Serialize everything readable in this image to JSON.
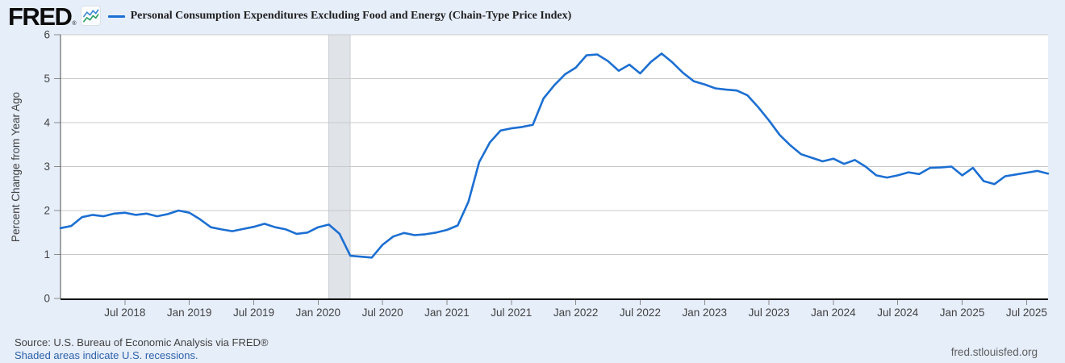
{
  "logo": {
    "text": "FRED",
    "registered": "®",
    "icon": "fred-sparkline-icon"
  },
  "legend": {
    "series_label": "Personal Consumption Expenditures Excluding Food and Energy (Chain-Type Price Index)",
    "swatch_color": "#1c6fd2"
  },
  "chart_data": {
    "type": "line",
    "title": "Personal Consumption Expenditures Excluding Food and Energy (Chain-Type Price Index)",
    "xlabel": "",
    "ylabel": "Percent Change from Year Ago",
    "ylim": [
      0,
      6
    ],
    "yticks": [
      0,
      1,
      2,
      3,
      4,
      5,
      6
    ],
    "grid": true,
    "legend_position": "top-left",
    "frequency": "monthly",
    "start_month": "2018-01",
    "end_month": "2025-09",
    "x_tick_labels": [
      "Jul 2018",
      "Jan 2019",
      "Jul 2019",
      "Jan 2020",
      "Jul 2020",
      "Jan 2021",
      "Jul 2021",
      "Jan 2022",
      "Jul 2022",
      "Jan 2023",
      "Jul 2023",
      "Jan 2024",
      "Jul 2024",
      "Jan 2025",
      "Jul 2025"
    ],
    "x_tick_month_index": [
      6,
      12,
      18,
      24,
      30,
      36,
      42,
      48,
      54,
      60,
      66,
      72,
      78,
      84,
      90
    ],
    "recession_band": {
      "from": "2020-02",
      "to": "2020-04",
      "from_index": 25,
      "to_index": 27
    },
    "series": [
      {
        "name": "Personal Consumption Expenditures Excluding Food and Energy (Chain-Type Price Index)",
        "color": "#1c6fd2",
        "values": [
          1.6,
          1.65,
          1.85,
          1.9,
          1.87,
          1.93,
          1.95,
          1.9,
          1.93,
          1.87,
          1.92,
          2.0,
          1.95,
          1.8,
          1.62,
          1.57,
          1.53,
          1.58,
          1.63,
          1.7,
          1.62,
          1.57,
          1.47,
          1.5,
          1.62,
          1.68,
          1.47,
          0.97,
          0.95,
          0.93,
          1.22,
          1.41,
          1.49,
          1.44,
          1.46,
          1.5,
          1.56,
          1.66,
          2.2,
          3.1,
          3.55,
          3.82,
          3.87,
          3.9,
          3.95,
          4.55,
          4.85,
          5.1,
          5.25,
          5.53,
          5.55,
          5.4,
          5.18,
          5.32,
          5.12,
          5.38,
          5.57,
          5.37,
          5.13,
          4.94,
          4.87,
          4.78,
          4.75,
          4.73,
          4.62,
          4.35,
          4.05,
          3.72,
          3.48,
          3.28,
          3.2,
          3.12,
          3.18,
          3.06,
          3.15,
          3.0,
          2.8,
          2.75,
          2.8,
          2.87,
          2.83,
          2.97,
          2.98,
          3.0,
          2.8,
          2.97,
          2.67,
          2.6,
          2.78,
          2.82,
          2.86,
          2.9,
          2.84
        ]
      }
    ]
  },
  "footer": {
    "source": "Source: U.S. Bureau of Economic Analysis via FRED®",
    "recession_note": "Shaded areas indicate U.S. recessions.",
    "site": "fred.stlouisfed.org"
  },
  "colors": {
    "background": "#e6eefa",
    "plot_background": "#ffffff",
    "grid": "#c9c9c9",
    "recession_gray": "#e0e3e8",
    "recession_edge": "#c9ced6",
    "bottom_axis": "#000000",
    "left_axis": "#4d4d4d",
    "tick_mark": "#8a8a8a",
    "tick_text": "#424242",
    "line_blue": "#1c6fd2",
    "link_blue": "#2d61a8",
    "source_text": "#424242",
    "site_text": "#5f5f5f",
    "icon_blue": "#3b87d4",
    "icon_green": "#2e9e63"
  }
}
